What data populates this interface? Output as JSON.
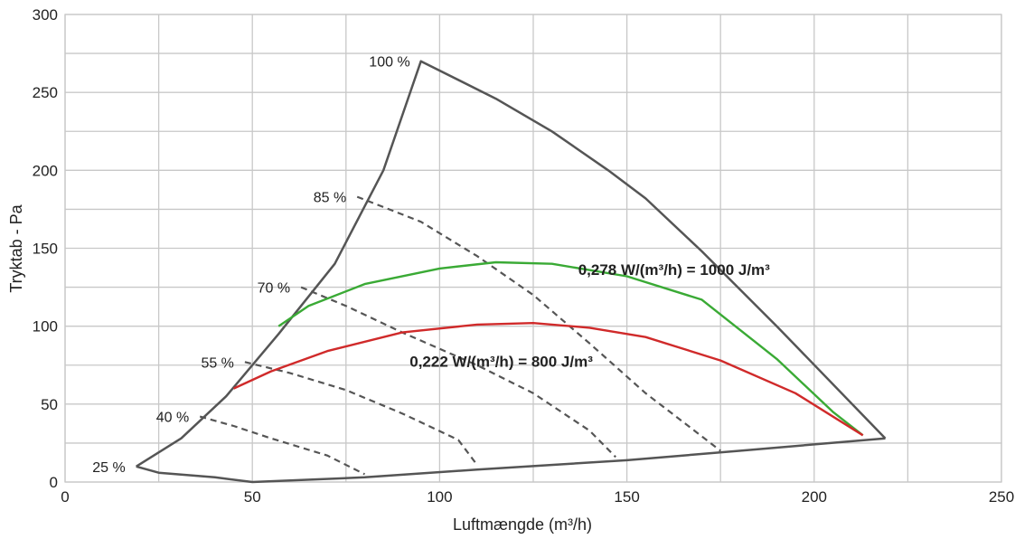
{
  "chart_data": {
    "type": "line",
    "xlabel": "Luftmængde (m³/h)",
    "ylabel": "Tryktab - Pa",
    "xlim": [
      0,
      250
    ],
    "ylim": [
      0,
      300
    ],
    "xticks": [
      0,
      50,
      100,
      150,
      200,
      250
    ],
    "yticks": [
      0,
      50,
      100,
      150,
      200,
      250,
      300
    ],
    "grid": true,
    "colors": {
      "envelope": "#555555",
      "green": "#3aaa35",
      "red": "#d02a2a",
      "dashed": "#555555",
      "grid": "#c8c8c8"
    },
    "envelope": {
      "upper": [
        [
          19,
          10
        ],
        [
          31,
          28
        ],
        [
          43,
          55
        ],
        [
          57,
          95
        ],
        [
          72,
          140
        ],
        [
          85,
          200
        ],
        [
          95,
          270
        ],
        [
          115,
          246
        ],
        [
          130,
          225
        ],
        [
          145,
          200
        ],
        [
          155,
          182
        ],
        [
          170,
          148
        ],
        [
          190,
          100
        ],
        [
          219,
          28
        ]
      ],
      "lower": [
        [
          19,
          10
        ],
        [
          25,
          6
        ],
        [
          40,
          3
        ],
        [
          50,
          0
        ],
        [
          80,
          3
        ],
        [
          110,
          8
        ],
        [
          150,
          14
        ],
        [
          180,
          20
        ],
        [
          219,
          28
        ]
      ]
    },
    "percent_curves": [
      {
        "label": "100 %",
        "points": []
      },
      {
        "label": "85 %",
        "points": [
          [
            78,
            183
          ],
          [
            95,
            167
          ],
          [
            110,
            145
          ],
          [
            125,
            120
          ],
          [
            140,
            89
          ],
          [
            155,
            57
          ],
          [
            168,
            33
          ],
          [
            175,
            20
          ]
        ]
      },
      {
        "label": "70 %",
        "points": [
          [
            63,
            125
          ],
          [
            75,
            113
          ],
          [
            90,
            96
          ],
          [
            110,
            75
          ],
          [
            125,
            57
          ],
          [
            140,
            33
          ],
          [
            147,
            16
          ]
        ]
      },
      {
        "label": "55 %",
        "points": [
          [
            48,
            77
          ],
          [
            60,
            70
          ],
          [
            75,
            59
          ],
          [
            90,
            44
          ],
          [
            105,
            27
          ],
          [
            110,
            11
          ]
        ]
      },
      {
        "label": "40 %",
        "points": [
          [
            36,
            42
          ],
          [
            45,
            36
          ],
          [
            55,
            28
          ],
          [
            70,
            17
          ],
          [
            80,
            5
          ]
        ]
      },
      {
        "label": "25 %",
        "points": []
      }
    ],
    "series": [
      {
        "name": "0,278 W/(m³/h) = 1000 J/m³",
        "color": "green",
        "points": [
          [
            57,
            100
          ],
          [
            65,
            113
          ],
          [
            80,
            127
          ],
          [
            100,
            137
          ],
          [
            115,
            141
          ],
          [
            130,
            140
          ],
          [
            150,
            132
          ],
          [
            170,
            117
          ],
          [
            190,
            79
          ],
          [
            205,
            45
          ],
          [
            213,
            30
          ]
        ]
      },
      {
        "name": "0,222 W/(m³/h) = 800 J/m³",
        "color": "red",
        "points": [
          [
            45,
            60
          ],
          [
            55,
            71
          ],
          [
            70,
            84
          ],
          [
            90,
            96
          ],
          [
            110,
            101
          ],
          [
            125,
            102
          ],
          [
            140,
            99
          ],
          [
            155,
            93
          ],
          [
            175,
            78
          ],
          [
            195,
            57
          ],
          [
            213,
            30
          ]
        ]
      }
    ],
    "annotations": [
      {
        "text": "0,278 W/(m³/h) = 1000 J/m³",
        "x": 137,
        "y": 133
      },
      {
        "text": "0,222 W/(m³/h) = 800 J/m³",
        "x": 92,
        "y": 74
      }
    ]
  }
}
